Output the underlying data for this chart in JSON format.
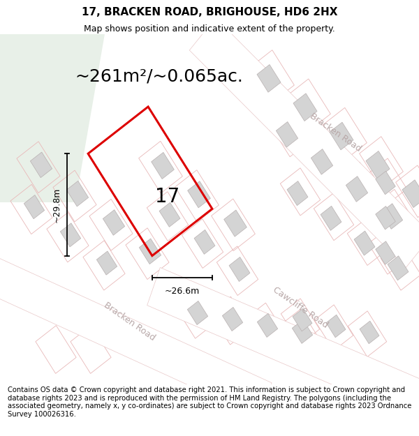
{
  "title": "17, BRACKEN ROAD, BRIGHOUSE, HD6 2HX",
  "subtitle": "Map shows position and indicative extent of the property.",
  "area_label": "~261m²/~0.065ac.",
  "property_number": "17",
  "dim_width": "~26.6m",
  "dim_height": "~29.8m",
  "footer": "Contains OS data © Crown copyright and database right 2021. This information is subject to Crown copyright and database rights 2023 and is reproduced with the permission of HM Land Registry. The polygons (including the associated geometry, namely x, y co-ordinates) are subject to Crown copyright and database rights 2023 Ordnance Survey 100026316.",
  "map_bg": "#f7f7f5",
  "green_area_color": "#e8f0e8",
  "road_fill": "#ffffff",
  "road_outline": "#e8c8c8",
  "plot_color": "#dd0000",
  "building_fill": "#d4d4d4",
  "building_outline": "#b8b0b0",
  "plot_outline_color": "#e8b8b8",
  "street_label_color": "#b8a8a8",
  "title_fontsize": 11,
  "subtitle_fontsize": 9,
  "area_fontsize": 18,
  "footer_fontsize": 7.2,
  "label_17_fontsize": 20
}
